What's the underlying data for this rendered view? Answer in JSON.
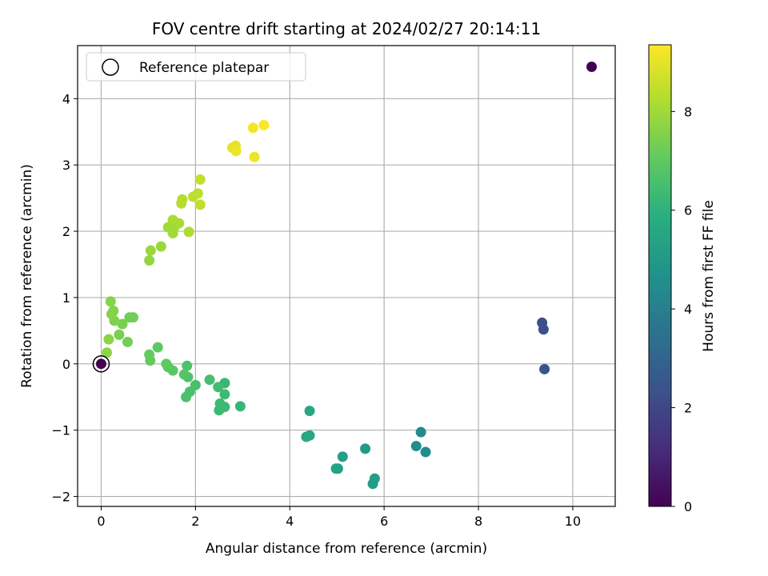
{
  "chart_data": {
    "type": "scatter",
    "title": "FOV centre drift starting at 2024/02/27 20:14:11",
    "xlabel": "Angular distance from reference (arcmin)",
    "ylabel": "Rotation from reference (arcmin)",
    "xlim": [
      -0.5,
      10.9
    ],
    "ylim": [
      -2.15,
      4.8
    ],
    "xticks": [
      0,
      2,
      4,
      6,
      8,
      10
    ],
    "xtick_labels": [
      "0",
      "2",
      "4",
      "6",
      "8",
      "10"
    ],
    "yticks": [
      -2,
      -1,
      0,
      1,
      2,
      3,
      4
    ],
    "ytick_labels": [
      "−2",
      "−1",
      "0",
      "1",
      "2",
      "3",
      "4"
    ],
    "grid": true,
    "colormap": "viridis",
    "colorbar": {
      "label": "Hours from first FF file",
      "range": [
        0,
        9.35
      ],
      "ticks": [
        0,
        2,
        4,
        6,
        8
      ],
      "tick_labels": [
        "0",
        "2",
        "4",
        "6",
        "8"
      ]
    },
    "legend": {
      "placement": "top-left",
      "entries": [
        {
          "label": "Reference platepar",
          "marker": "open-circle",
          "color": "#000000"
        }
      ]
    },
    "reference_point": {
      "x": 0,
      "y": 0
    },
    "series": [
      {
        "points": [
          {
            "x": 10.4,
            "y": 4.48,
            "c": 0.0
          },
          {
            "x": 0.0,
            "y": 0.0,
            "c": 0.0
          },
          {
            "x": 9.35,
            "y": 0.62,
            "c": 2.3
          },
          {
            "x": 9.38,
            "y": 0.52,
            "c": 2.3
          },
          {
            "x": 9.4,
            "y": -0.08,
            "c": 2.4
          },
          {
            "x": 6.78,
            "y": -1.03,
            "c": 4.4
          },
          {
            "x": 6.68,
            "y": -1.24,
            "c": 4.5
          },
          {
            "x": 6.88,
            "y": -1.33,
            "c": 4.5
          },
          {
            "x": 5.6,
            "y": -1.28,
            "c": 5.0
          },
          {
            "x": 5.8,
            "y": -1.73,
            "c": 5.1
          },
          {
            "x": 5.76,
            "y": -1.81,
            "c": 5.1
          },
          {
            "x": 5.12,
            "y": -1.4,
            "c": 5.2
          },
          {
            "x": 5.02,
            "y": -1.58,
            "c": 5.2
          },
          {
            "x": 4.98,
            "y": -1.58,
            "c": 5.3
          },
          {
            "x": 4.42,
            "y": -0.71,
            "c": 5.6
          },
          {
            "x": 4.42,
            "y": -1.08,
            "c": 5.6
          },
          {
            "x": 4.35,
            "y": -1.1,
            "c": 5.6
          },
          {
            "x": 2.95,
            "y": -0.64,
            "c": 6.2
          },
          {
            "x": 2.62,
            "y": -0.29,
            "c": 6.2
          },
          {
            "x": 2.62,
            "y": -0.46,
            "c": 6.3
          },
          {
            "x": 2.62,
            "y": -0.65,
            "c": 6.3
          },
          {
            "x": 2.52,
            "y": -0.6,
            "c": 6.3
          },
          {
            "x": 2.5,
            "y": -0.7,
            "c": 6.3
          },
          {
            "x": 2.48,
            "y": -0.35,
            "c": 6.4
          },
          {
            "x": 2.3,
            "y": -0.24,
            "c": 6.5
          },
          {
            "x": 2.0,
            "y": -0.32,
            "c": 6.6
          },
          {
            "x": 1.88,
            "y": -0.42,
            "c": 6.6
          },
          {
            "x": 1.8,
            "y": -0.5,
            "c": 6.6
          },
          {
            "x": 1.84,
            "y": -0.2,
            "c": 6.7
          },
          {
            "x": 1.82,
            "y": -0.03,
            "c": 6.7
          },
          {
            "x": 1.76,
            "y": -0.16,
            "c": 6.8
          },
          {
            "x": 1.52,
            "y": -0.1,
            "c": 6.9
          },
          {
            "x": 1.42,
            "y": -0.05,
            "c": 6.9
          },
          {
            "x": 1.38,
            "y": 0.0,
            "c": 7.0
          },
          {
            "x": 1.2,
            "y": 0.25,
            "c": 7.0
          },
          {
            "x": 1.04,
            "y": 0.05,
            "c": 7.1
          },
          {
            "x": 1.02,
            "y": 0.14,
            "c": 7.1
          },
          {
            "x": 0.68,
            "y": 0.7,
            "c": 7.3
          },
          {
            "x": 0.6,
            "y": 0.7,
            "c": 7.3
          },
          {
            "x": 0.56,
            "y": 0.33,
            "c": 7.3
          },
          {
            "x": 0.45,
            "y": 0.6,
            "c": 7.4
          },
          {
            "x": 0.38,
            "y": 0.44,
            "c": 7.4
          },
          {
            "x": 0.28,
            "y": 0.65,
            "c": 7.5
          },
          {
            "x": 0.26,
            "y": 0.8,
            "c": 7.5
          },
          {
            "x": 0.22,
            "y": 0.75,
            "c": 7.6
          },
          {
            "x": 0.2,
            "y": 0.94,
            "c": 7.6
          },
          {
            "x": 0.16,
            "y": 0.37,
            "c": 7.7
          },
          {
            "x": 0.12,
            "y": 0.17,
            "c": 7.7
          },
          {
            "x": 1.02,
            "y": 1.56,
            "c": 7.8
          },
          {
            "x": 1.05,
            "y": 1.71,
            "c": 7.9
          },
          {
            "x": 1.27,
            "y": 1.77,
            "c": 7.9
          },
          {
            "x": 1.52,
            "y": 1.97,
            "c": 8.0
          },
          {
            "x": 1.42,
            "y": 2.06,
            "c": 8.0
          },
          {
            "x": 1.55,
            "y": 2.06,
            "c": 8.0
          },
          {
            "x": 1.52,
            "y": 2.17,
            "c": 8.1
          },
          {
            "x": 1.65,
            "y": 2.12,
            "c": 8.1
          },
          {
            "x": 1.86,
            "y": 1.99,
            "c": 8.2
          },
          {
            "x": 1.7,
            "y": 2.42,
            "c": 8.3
          },
          {
            "x": 1.72,
            "y": 2.48,
            "c": 8.3
          },
          {
            "x": 1.95,
            "y": 2.52,
            "c": 8.4
          },
          {
            "x": 2.05,
            "y": 2.57,
            "c": 8.4
          },
          {
            "x": 2.1,
            "y": 2.4,
            "c": 8.5
          },
          {
            "x": 2.1,
            "y": 2.78,
            "c": 8.5
          },
          {
            "x": 2.78,
            "y": 3.26,
            "c": 9.0
          },
          {
            "x": 2.85,
            "y": 3.29,
            "c": 9.0
          },
          {
            "x": 2.86,
            "y": 3.21,
            "c": 9.1
          },
          {
            "x": 3.25,
            "y": 3.12,
            "c": 9.1
          },
          {
            "x": 3.22,
            "y": 3.56,
            "c": 9.2
          },
          {
            "x": 3.45,
            "y": 3.6,
            "c": 9.3
          }
        ]
      }
    ]
  }
}
